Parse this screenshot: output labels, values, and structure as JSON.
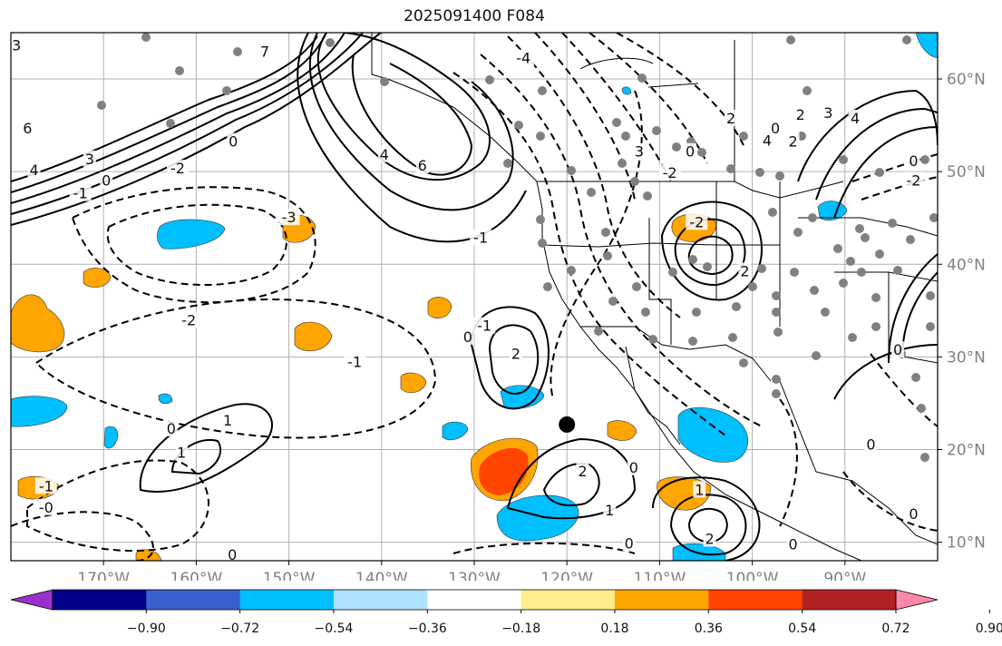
{
  "title": "2025091400 F084",
  "map": {
    "lon_range": [
      -180,
      -80
    ],
    "lat_range": [
      8,
      65
    ],
    "lon_ticks": [
      {
        "lon": -170,
        "label": "170°W"
      },
      {
        "lon": -160,
        "label": "160°W"
      },
      {
        "lon": -150,
        "label": "150°W"
      },
      {
        "lon": -140,
        "label": "140°W"
      },
      {
        "lon": -130,
        "label": "130°W"
      },
      {
        "lon": -120,
        "label": "120°W"
      },
      {
        "lon": -110,
        "label": "110°W"
      },
      {
        "lon": -100,
        "label": "100°W"
      },
      {
        "lon": -90,
        "label": "90°W"
      }
    ],
    "lat_ticks": [
      {
        "lat": 60,
        "label": "60°N"
      },
      {
        "lat": 50,
        "label": "50°N"
      },
      {
        "lat": 40,
        "label": "40°N"
      },
      {
        "lat": 30,
        "label": "30°N"
      },
      {
        "lat": 20,
        "label": "20°N"
      },
      {
        "lat": 10,
        "label": "10°N"
      }
    ],
    "grid": true,
    "marker": {
      "lon": -120,
      "lat": 22.7,
      "color": "#000000"
    },
    "contour_labels": [
      {
        "text": "3",
        "lon": -179.4,
        "lat": 63.6
      },
      {
        "text": "6",
        "lon": -178.2,
        "lat": 54.6
      },
      {
        "text": "4",
        "lon": -177.5,
        "lat": 50.1
      },
      {
        "text": "3",
        "lon": -171.5,
        "lat": 51.3
      },
      {
        "text": "-1",
        "lon": -172.5,
        "lat": 47.6
      },
      {
        "text": "0",
        "lon": -169.7,
        "lat": 49.0
      },
      {
        "text": "-2",
        "lon": -162.0,
        "lat": 50.3
      },
      {
        "text": "0",
        "lon": -156.0,
        "lat": 53.2
      },
      {
        "text": "7",
        "lon": -152.6,
        "lat": 62.9
      },
      {
        "text": "4",
        "lon": -139.7,
        "lat": 51.8
      },
      {
        "text": "6",
        "lon": -135.6,
        "lat": 50.6
      },
      {
        "text": "-3",
        "lon": -150.0,
        "lat": 45.0
      },
      {
        "text": "-2",
        "lon": -160.8,
        "lat": 33.9
      },
      {
        "text": "-1",
        "lon": -142.9,
        "lat": 29.4
      },
      {
        "text": "-1",
        "lon": -128.9,
        "lat": 33.3
      },
      {
        "text": "0",
        "lon": -130.7,
        "lat": 32.1
      },
      {
        "text": "2",
        "lon": -125.5,
        "lat": 30.3
      },
      {
        "text": "0",
        "lon": -162.7,
        "lat": 22.2
      },
      {
        "text": "1",
        "lon": -156.6,
        "lat": 23.1
      },
      {
        "text": "1",
        "lon": -161.6,
        "lat": 19.6
      },
      {
        "text": "-1",
        "lon": -176.2,
        "lat": 16.0
      },
      {
        "text": "-0",
        "lon": -176.2,
        "lat": 13.7
      },
      {
        "text": "0",
        "lon": -156.1,
        "lat": 8.6
      },
      {
        "text": "2",
        "lon": -118.3,
        "lat": 17.6
      },
      {
        "text": "1",
        "lon": -115.4,
        "lat": 13.4
      },
      {
        "text": "0",
        "lon": -112.8,
        "lat": 18.0
      },
      {
        "text": "1",
        "lon": -105.7,
        "lat": 15.6
      },
      {
        "text": "2",
        "lon": -104.6,
        "lat": 10.3
      },
      {
        "text": "0",
        "lon": -113.3,
        "lat": 9.8
      },
      {
        "text": "0",
        "lon": -95.6,
        "lat": 9.7
      },
      {
        "text": "0",
        "lon": -82.6,
        "lat": 13.0
      },
      {
        "text": "0",
        "lon": -87.2,
        "lat": 20.5
      },
      {
        "text": "0",
        "lon": -84.3,
        "lat": 30.7
      },
      {
        "text": "-2",
        "lon": -106.0,
        "lat": 44.5
      },
      {
        "text": "2",
        "lon": -100.8,
        "lat": 39.2
      },
      {
        "text": "3",
        "lon": -112.2,
        "lat": 52.1
      },
      {
        "text": "-2",
        "lon": -108.9,
        "lat": 49.8
      },
      {
        "text": "0",
        "lon": -106.7,
        "lat": 52.1
      },
      {
        "text": "2",
        "lon": -102.3,
        "lat": 55.7
      },
      {
        "text": "0",
        "lon": -97.5,
        "lat": 54.6
      },
      {
        "text": "4",
        "lon": -98.4,
        "lat": 53.3
      },
      {
        "text": "2",
        "lon": -95.6,
        "lat": 53.2
      },
      {
        "text": "2",
        "lon": -94.8,
        "lat": 56.1
      },
      {
        "text": "3",
        "lon": -91.8,
        "lat": 56.3
      },
      {
        "text": "4",
        "lon": -88.9,
        "lat": 55.7
      },
      {
        "text": "0",
        "lon": -82.6,
        "lat": 51.1
      },
      {
        "text": "-2",
        "lon": -82.6,
        "lat": 49.0
      },
      {
        "text": "-1",
        "lon": -129.3,
        "lat": 42.8
      },
      {
        "text": "-4",
        "lon": -124.7,
        "lat": 62.2
      }
    ]
  },
  "colorbar": {
    "colors": [
      "#9932CC",
      "#00008B",
      "#3A5FCD",
      "#00BFFF",
      "#B0E2FF",
      "#FFFFFF",
      "#FFEC8B",
      "#FFA500",
      "#FF4500",
      "#B22222",
      "#FF88AA"
    ],
    "tick_labels": [
      "−0.90",
      "−0.72",
      "−0.54",
      "−0.36",
      "−0.18",
      "0.18",
      "0.36",
      "0.54",
      "0.72",
      "0.90"
    ]
  },
  "colors": {
    "positive_fill": "#FFA500",
    "strong_positive_fill": "#FF4500",
    "negative_fill": "#00BFFF",
    "station_dot": "#808080"
  }
}
